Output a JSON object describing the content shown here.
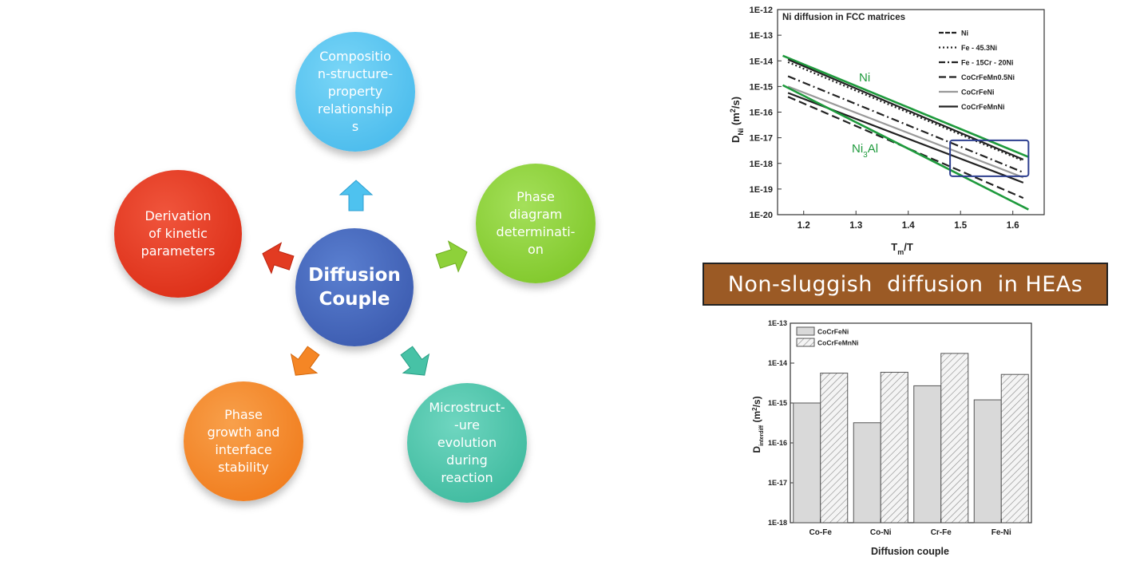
{
  "diagram": {
    "center": {
      "text": "Diffusion\nCouple",
      "color": "#3f62b5"
    },
    "nodes": [
      {
        "id": "top",
        "text": "Compositio\nn-structure-\nproperty\nrelationship\ns",
        "color": "#4ec2ef"
      },
      {
        "id": "right",
        "text": "Phase\ndiagram\ndeterminati-\non",
        "color": "#84cc2c"
      },
      {
        "id": "bottom-right",
        "text": "Microstruct-\n-ure\nevolution\nduring\nreaction",
        "color": "#3fbfa4"
      },
      {
        "id": "bottom-left",
        "text": "Phase\ngrowth and\ninterface\nstability",
        "color": "#f2801f"
      },
      {
        "id": "left",
        "text": "Derivation\nof kinetic\nparameters",
        "color": "#e2321f"
      }
    ]
  },
  "banner": {
    "text": "Non-sluggish  diffusion  in HEAs",
    "color": "#9b5a25"
  },
  "line_chart": {
    "type": "line",
    "title": "Ni diffusion in FCC matrices",
    "xlabel": "T_m/T",
    "ylabel": "D_Ni (m²/s)",
    "x_ticks": [
      "1.2",
      "1.3",
      "1.4",
      "1.5",
      "1.6"
    ],
    "y_ticks": [
      "1E-12",
      "1E-13",
      "1E-14",
      "1E-15",
      "1E-16",
      "1E-17",
      "1E-18",
      "1E-19",
      "1E-20"
    ],
    "xlim": [
      1.15,
      1.66
    ],
    "ylim_log10": [
      -20,
      -12
    ],
    "legend": [
      "Ni",
      "Fe - 45.3Ni",
      "Fe - 15Cr - 20Ni",
      "CoCrFeMn0.5Ni",
      "CoCrFeNi",
      "CoCrFeMnNi"
    ],
    "annotations": [
      "Ni",
      "Ni3Al"
    ],
    "series": [
      {
        "name": "Ni",
        "x": [
          1.16,
          1.63
        ],
        "log10_y": [
          -13.8,
          -17.75
        ],
        "color": "#1e9a3c",
        "style": "solid"
      },
      {
        "name": "Ni",
        "x": [
          1.17,
          1.62
        ],
        "log10_y": [
          -13.95,
          -17.85
        ],
        "color": "#222222",
        "style": "solid"
      },
      {
        "name": "Fe - 45.3Ni",
        "x": [
          1.17,
          1.62
        ],
        "log10_y": [
          -14.05,
          -17.9
        ],
        "color": "#222222",
        "style": "dotted"
      },
      {
        "name": "Fe - 15Cr - 20Ni",
        "x": [
          1.17,
          1.62
        ],
        "log10_y": [
          -14.6,
          -18.35
        ],
        "color": "#222222",
        "style": "dashdot"
      },
      {
        "name": "CoCrFeNi",
        "x": [
          1.17,
          1.62
        ],
        "log10_y": [
          -15.0,
          -18.55
        ],
        "color": "#999999",
        "style": "solid"
      },
      {
        "name": "CoCrFeMnNi",
        "x": [
          1.17,
          1.62
        ],
        "log10_y": [
          -15.25,
          -18.75
        ],
        "color": "#222222",
        "style": "solid"
      },
      {
        "name": "CoCrFeMn0.5Ni",
        "x": [
          1.17,
          1.62
        ],
        "log10_y": [
          -15.4,
          -19.35
        ],
        "color": "#222222",
        "style": "dashed"
      },
      {
        "name": "Ni3Al",
        "x": [
          1.16,
          1.63
        ],
        "log10_y": [
          -14.95,
          -19.8
        ],
        "color": "#1e9a3c",
        "style": "solid"
      }
    ],
    "highlight_box": {
      "x": [
        1.48,
        1.63
      ],
      "log10_y": [
        -17.1,
        -18.5
      ],
      "color": "#2c3e8f"
    }
  },
  "bar_chart": {
    "type": "bar",
    "xlabel": "Diffusion couple",
    "ylabel": "D_interdiff (m²/s)",
    "categories": [
      "Co-Fe",
      "Co-Ni",
      "Cr-Fe",
      "Fe-Ni"
    ],
    "y_ticks": [
      "1E-13",
      "1E-14",
      "1E-15",
      "1E-16",
      "1E-17",
      "1E-18"
    ],
    "ylim_log10": [
      -18,
      -13
    ],
    "series": [
      {
        "name": "CoCrFeNi",
        "values": [
          1e-15,
          3.2e-16,
          2.7e-15,
          1.2e-15
        ],
        "fill": "#d9d9d9"
      },
      {
        "name": "CoCrFeMnNi",
        "values": [
          5.6e-15,
          5.9e-15,
          1.75e-14,
          5.2e-15
        ],
        "fill": "hatched"
      }
    ]
  }
}
